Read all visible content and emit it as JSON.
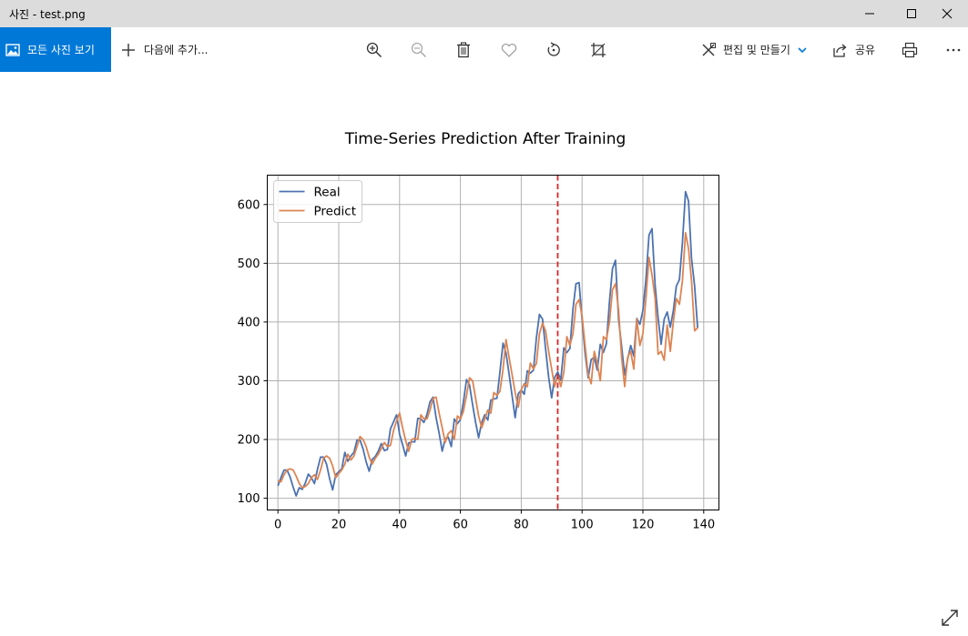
{
  "window": {
    "title": "사진 - test.png"
  },
  "toolbar": {
    "all_photos_label": "모든 사진 보기",
    "add_to_label": "다음에 추가...",
    "edit_create_label": "편집 및 만들기",
    "share_label": "공유"
  },
  "chart_data": {
    "type": "line",
    "title": "Time-Series Prediction After Training",
    "xlabel": "",
    "ylabel": "",
    "xlim": [
      -3.5,
      145
    ],
    "ylim": [
      80,
      650
    ],
    "xticks": [
      0,
      20,
      40,
      60,
      80,
      100,
      120,
      140
    ],
    "yticks": [
      100,
      200,
      300,
      400,
      500,
      600
    ],
    "grid": true,
    "legend_position": "upper-left",
    "vline": {
      "x": 92,
      "color": "#d62728",
      "style": "dashed"
    },
    "series": [
      {
        "name": "Real",
        "color": "#4c72b0",
        "values": [
          121,
          135,
          148,
          148,
          136,
          119,
          104,
          118,
          115,
          126,
          141,
          135,
          125,
          149,
          170,
          170,
          158,
          133,
          114,
          140,
          145,
          150,
          178,
          163,
          172,
          178,
          199,
          199,
          184,
          162,
          146,
          166,
          171,
          180,
          193,
          181,
          183,
          218,
          230,
          242,
          209,
          191,
          172,
          194,
          196,
          196,
          236,
          235,
          229,
          243,
          264,
          272,
          237,
          211,
          180,
          201,
          204,
          188,
          235,
          227,
          234,
          264,
          302,
          293,
          259,
          229,
          203,
          229,
          242,
          233,
          267,
          269,
          270,
          315,
          364,
          347,
          312,
          274,
          237,
          278,
          284,
          277,
          317,
          313,
          318,
          374,
          413,
          405,
          355,
          306,
          271,
          306,
          315,
          301,
          356,
          348,
          355,
          422,
          465,
          467,
          404,
          347,
          305,
          336,
          340,
          318,
          362,
          348,
          363,
          435,
          491,
          505,
          404,
          359,
          310,
          337,
          360,
          342,
          406,
          396,
          420,
          472,
          548,
          559,
          463,
          407,
          362,
          405,
          417,
          391,
          419,
          461,
          472,
          535,
          622,
          606,
          508,
          461,
          390
        ]
      },
      {
        "name": "Predict",
        "color": "#dd8452",
        "values": [
          130,
          128,
          140,
          148,
          150,
          148,
          138,
          125,
          118,
          120,
          125,
          135,
          140,
          132,
          148,
          168,
          172,
          168,
          155,
          135,
          142,
          148,
          158,
          175,
          165,
          172,
          188,
          205,
          200,
          188,
          170,
          158,
          168,
          175,
          185,
          195,
          188,
          190,
          215,
          232,
          245,
          220,
          198,
          180,
          200,
          202,
          200,
          242,
          235,
          235,
          250,
          270,
          272,
          245,
          220,
          195,
          210,
          215,
          200,
          240,
          235,
          248,
          275,
          305,
          300,
          270,
          240,
          220,
          235,
          250,
          245,
          280,
          275,
          282,
          320,
          370,
          340,
          310,
          280,
          255,
          285,
          295,
          290,
          330,
          320,
          330,
          380,
          398,
          385,
          350,
          320,
          290,
          310,
          290,
          315,
          375,
          360,
          380,
          430,
          438,
          410,
          360,
          310,
          295,
          350,
          330,
          300,
          375,
          370,
          400,
          455,
          465,
          420,
          340,
          290,
          340,
          350,
          320,
          405,
          360,
          380,
          440,
          510,
          480,
          440,
          345,
          350,
          335,
          395,
          350,
          400,
          440,
          430,
          470,
          552,
          525,
          470,
          385,
          390
        ]
      }
    ]
  }
}
